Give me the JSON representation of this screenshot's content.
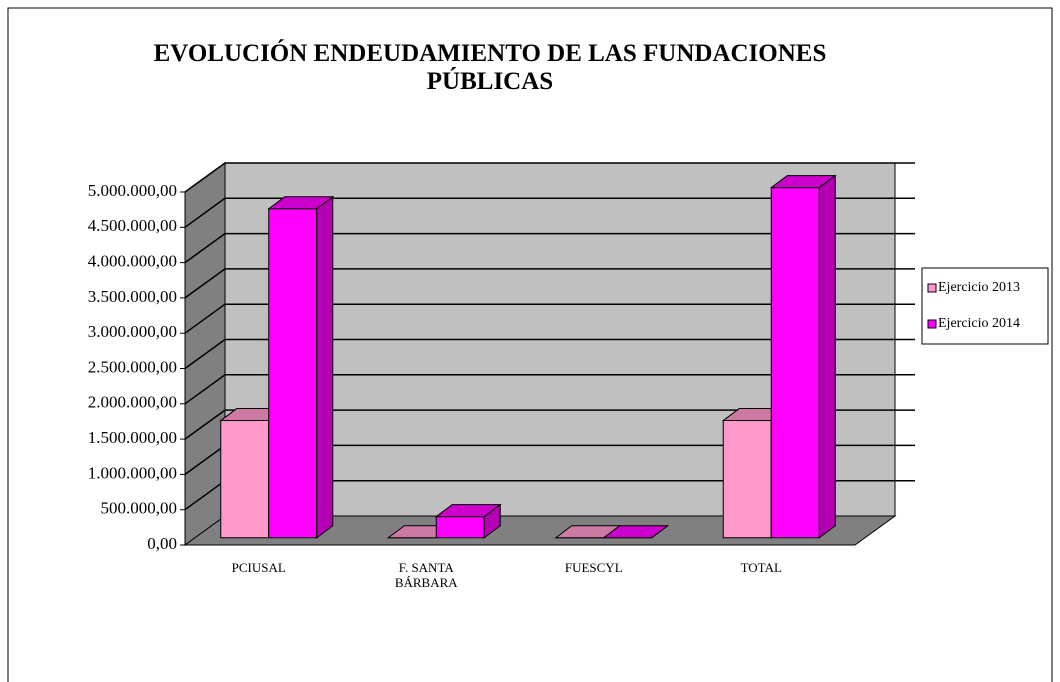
{
  "chart_data": {
    "type": "bar3d",
    "title": "EVOLUCIÓN ENDEUDAMIENTO DE LAS FUNDACIONES PÚBLICAS",
    "categories": [
      "PCIUSAL",
      "F. SANTA BÁRBARA",
      "FUESCYL",
      "TOTAL"
    ],
    "series": [
      {
        "name": "Ejercicio 2013",
        "color": "#ff99cc",
        "values": [
          1660000,
          0,
          0,
          1660000
        ]
      },
      {
        "name": "Ejercicio 2014",
        "color": "#ff00ff",
        "values": [
          4660000,
          300000,
          0,
          4960000
        ]
      }
    ],
    "ylim": [
      0,
      5000000
    ],
    "yticks": [
      {
        "value": 0,
        "label": "0,00"
      },
      {
        "value": 500000,
        "label": "500.000,00"
      },
      {
        "value": 1000000,
        "label": "1.000.000,00"
      },
      {
        "value": 1500000,
        "label": "1.500.000,00"
      },
      {
        "value": 2000000,
        "label": "2.000.000,00"
      },
      {
        "value": 2500000,
        "label": "2.500.000,00"
      },
      {
        "value": 3000000,
        "label": "3.000.000,00"
      },
      {
        "value": 3500000,
        "label": "3.500.000,00"
      },
      {
        "value": 4000000,
        "label": "4.000.000,00"
      },
      {
        "value": 4500000,
        "label": "4.500.000,00"
      },
      {
        "value": 5000000,
        "label": "5.000.000,00"
      }
    ],
    "grid": true,
    "legend": "right"
  }
}
